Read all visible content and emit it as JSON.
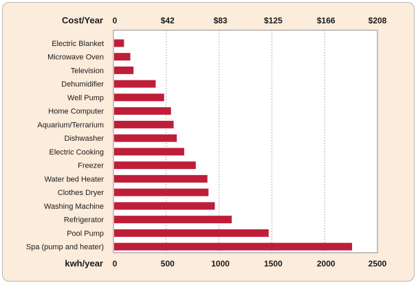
{
  "chart_data": {
    "type": "bar",
    "orientation": "horizontal",
    "categories": [
      "Electric Blanket",
      "Microwave Oven",
      "Television",
      "Dehumidifier",
      "Well Pump",
      "Home Computer",
      "Aquarium/Terrarium",
      "Dishwasher",
      "Electric Cooking",
      "Freezer",
      "Water bed Heater",
      "Clothes Dryer",
      "Washing Machine",
      "Refrigerator",
      "Pool Pump",
      "Spa (pump and heater)"
    ],
    "values": [
      100,
      160,
      190,
      400,
      480,
      545,
      570,
      600,
      670,
      780,
      890,
      900,
      960,
      1120,
      1470,
      2260
    ],
    "xlabel": "kwh/year",
    "x2label": "Cost/Year",
    "xlim": [
      0,
      2500
    ],
    "xticks": [
      0,
      500,
      1000,
      1500,
      2000,
      2500
    ],
    "xtick_labels": [
      "0",
      "500",
      "1000",
      "1500",
      "2000",
      "2500"
    ],
    "x2tick_labels": [
      "0",
      "$42",
      "$83",
      "$125",
      "$166",
      "$208"
    ],
    "bar_color": "#be1e3a",
    "background_color": "#fbecdb",
    "grid": "dotted vertical lines at 500, 1000, 1500, 2000"
  }
}
